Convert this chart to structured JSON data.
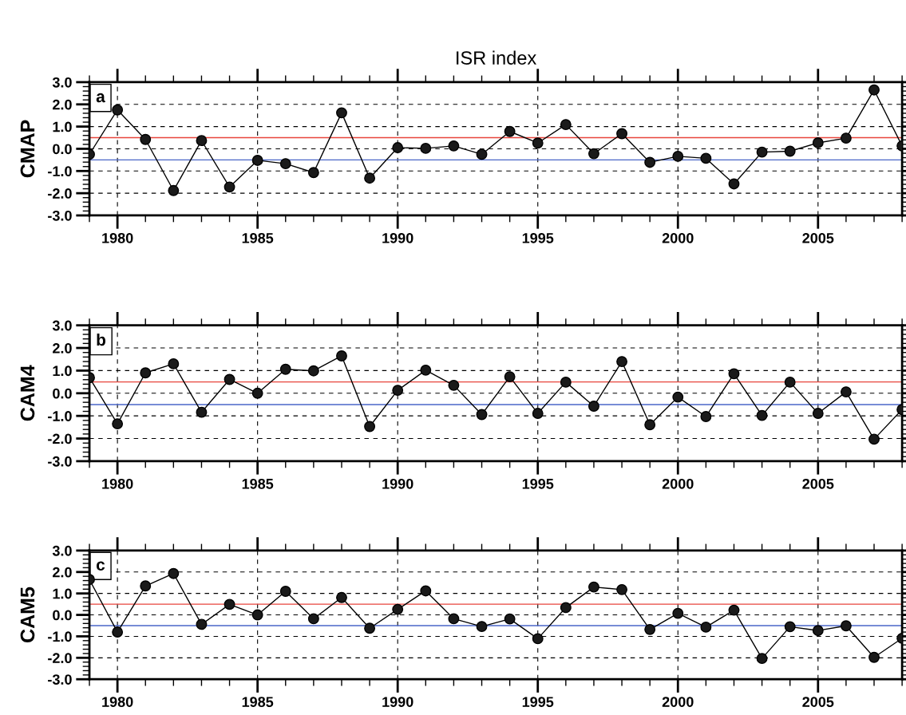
{
  "chart_data": [
    {
      "type": "line",
      "title": "ISR index",
      "ylabel": "CMAP",
      "annotations": [
        "a"
      ],
      "x": [
        1979,
        1980,
        1981,
        1982,
        1983,
        1984,
        1985,
        1986,
        1987,
        1988,
        1989,
        1990,
        1991,
        1992,
        1993,
        1994,
        1995,
        1996,
        1997,
        1998,
        1999,
        2000,
        2001,
        2002,
        2003,
        2004,
        2005,
        2006,
        2007,
        2008
      ],
      "series": [
        {
          "color": "#000000",
          "values": [
            -0.25,
            1.75,
            0.42,
            -1.88,
            0.37,
            -1.72,
            -0.52,
            -0.67,
            -1.07,
            1.62,
            -1.32,
            0.05,
            0.02,
            0.13,
            -0.25,
            0.78,
            0.26,
            1.09,
            -0.22,
            0.68,
            -0.61,
            -0.34,
            -0.43,
            -1.58,
            -0.15,
            -0.11,
            0.27,
            0.48,
            2.65,
            0.13
          ]
        }
      ],
      "xlim": [
        1979,
        2008
      ],
      "xticks": [
        1980,
        1985,
        1990,
        1995,
        2000,
        2005
      ],
      "ylim": [
        -3,
        3
      ],
      "yticks": [
        {
          "value": -3,
          "label": "-3.0"
        },
        {
          "value": -2,
          "label": "-2.0"
        },
        {
          "value": -1,
          "label": "-1.0"
        },
        {
          "value": 0,
          "label": "0.0"
        },
        {
          "value": 1,
          "label": "1.0"
        },
        {
          "value": 2,
          "label": "2.0"
        },
        {
          "value": 3,
          "label": "3.0"
        }
      ],
      "ref_lines": [
        {
          "axis": "y",
          "value": 0.5,
          "color": "#e8453c"
        },
        {
          "axis": "y",
          "value": -0.5,
          "color": "#4a66c8"
        }
      ],
      "grid": true,
      "marker": "circle",
      "line_style": "solid"
    },
    {
      "type": "line",
      "ylabel": "CAM4",
      "annotations": [
        "b"
      ],
      "x": [
        1979,
        1980,
        1981,
        1982,
        1983,
        1984,
        1985,
        1986,
        1987,
        1988,
        1989,
        1990,
        1991,
        1992,
        1993,
        1994,
        1995,
        1996,
        1997,
        1998,
        1999,
        2000,
        2001,
        2002,
        2003,
        2004,
        2005,
        2006,
        2007,
        2008
      ],
      "series": [
        {
          "color": "#000000",
          "values": [
            0.69,
            -1.35,
            0.9,
            1.3,
            -0.84,
            0.61,
            0,
            1.06,
            0.99,
            1.65,
            -1.47,
            0.13,
            1.02,
            0.35,
            -0.94,
            0.73,
            -0.89,
            0.49,
            -0.57,
            1.4,
            -1.39,
            -0.17,
            -1.03,
            0.86,
            -0.98,
            0.49,
            -0.89,
            0.06,
            -2.03,
            -0.72
          ]
        }
      ],
      "xlim": [
        1979,
        2008
      ],
      "xticks": [
        1980,
        1985,
        1990,
        1995,
        2000,
        2005
      ],
      "ylim": [
        -3,
        3
      ],
      "yticks": [
        {
          "value": -3,
          "label": "-3.0"
        },
        {
          "value": -2,
          "label": "-2.0"
        },
        {
          "value": -1,
          "label": "-1.0"
        },
        {
          "value": 0,
          "label": "0.0"
        },
        {
          "value": 1,
          "label": "1.0"
        },
        {
          "value": 2,
          "label": "2.0"
        },
        {
          "value": 3,
          "label": "3.0"
        }
      ],
      "ref_lines": [
        {
          "axis": "y",
          "value": 0.5,
          "color": "#e8453c"
        },
        {
          "axis": "y",
          "value": -0.5,
          "color": "#4a66c8"
        }
      ],
      "grid": true,
      "marker": "circle",
      "line_style": "solid"
    },
    {
      "type": "line",
      "ylabel": "CAM5",
      "annotations": [
        "c"
      ],
      "x": [
        1979,
        1980,
        1981,
        1982,
        1983,
        1984,
        1985,
        1986,
        1987,
        1988,
        1989,
        1990,
        1991,
        1992,
        1993,
        1994,
        1995,
        1996,
        1997,
        1998,
        1999,
        2000,
        2001,
        2002,
        2003,
        2004,
        2005,
        2006,
        2007,
        2008
      ],
      "series": [
        {
          "color": "#000000",
          "values": [
            1.65,
            -0.8,
            1.35,
            1.93,
            -0.44,
            0.49,
            0,
            1.1,
            -0.18,
            0.81,
            -0.62,
            0.26,
            1.12,
            -0.18,
            -0.54,
            -0.19,
            -1.11,
            0.34,
            1.3,
            1.18,
            -0.68,
            0.07,
            -0.57,
            0.22,
            -2.03,
            -0.55,
            -0.73,
            -0.51,
            -1.98,
            -1.09
          ]
        }
      ],
      "xlim": [
        1979,
        2008
      ],
      "xticks": [
        1980,
        1985,
        1990,
        1995,
        2000,
        2005
      ],
      "ylim": [
        -3,
        3
      ],
      "yticks": [
        {
          "value": -3,
          "label": "-3.0"
        },
        {
          "value": -2,
          "label": "-2.0"
        },
        {
          "value": -1,
          "label": "-1.0"
        },
        {
          "value": 0,
          "label": "0.0"
        },
        {
          "value": 1,
          "label": "1.0"
        },
        {
          "value": 2,
          "label": "2.0"
        },
        {
          "value": 3,
          "label": "3.0"
        }
      ],
      "ref_lines": [
        {
          "axis": "y",
          "value": 0.5,
          "color": "#e8453c"
        },
        {
          "axis": "y",
          "value": -0.5,
          "color": "#4a66c8"
        }
      ],
      "grid": true,
      "marker": "circle",
      "line_style": "solid"
    }
  ]
}
